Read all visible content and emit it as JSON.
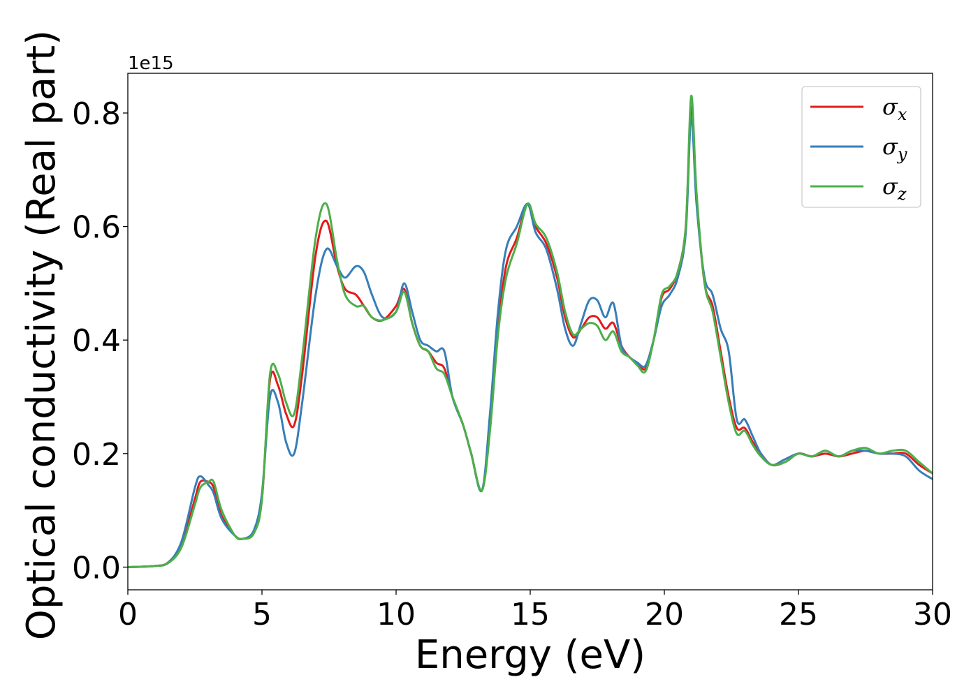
{
  "chart_data": {
    "type": "line",
    "xlabel": "Energy (eV)",
    "ylabel": "Optical conductivity (Real part)",
    "y_offset_text": "1e15",
    "xlim": [
      0,
      30
    ],
    "ylim": [
      -0.04,
      0.87
    ],
    "x_ticks": [
      0,
      5,
      10,
      15,
      20,
      25,
      30
    ],
    "x_tick_labels": [
      "0",
      "5",
      "10",
      "15",
      "20",
      "25",
      "30"
    ],
    "y_ticks": [
      0.0,
      0.2,
      0.4,
      0.6,
      0.8
    ],
    "y_tick_labels": [
      "0.0",
      "0.2",
      "0.4",
      "0.6",
      "0.8"
    ],
    "grid": false,
    "legend_position": "top-right",
    "series": [
      {
        "name": "σ",
        "subscript": "x",
        "color": "#e41a1c",
        "x": [
          0,
          1,
          1.5,
          2,
          2.5,
          2.7,
          3,
          3.2,
          3.5,
          4,
          4.3,
          4.7,
          5,
          5.3,
          5.6,
          5.9,
          6.2,
          6.5,
          7,
          7.4,
          7.8,
          8.1,
          8.5,
          8.8,
          9.1,
          9.5,
          10,
          10.3,
          10.6,
          10.9,
          11.2,
          11.5,
          11.8,
          12.1,
          12.5,
          12.8,
          13.2,
          13.5,
          13.8,
          14.1,
          14.5,
          14.9,
          15.2,
          15.6,
          16,
          16.3,
          16.6,
          16.9,
          17.2,
          17.5,
          17.8,
          18.1,
          18.4,
          18.7,
          19,
          19.3,
          19.6,
          19.9,
          20.2,
          20.5,
          20.8,
          21,
          21.2,
          21.5,
          21.8,
          22.1,
          22.4,
          22.7,
          23,
          23.3,
          23.6,
          24,
          24.5,
          25,
          25.5,
          26,
          26.5,
          27,
          27.5,
          28,
          28.5,
          29,
          29.5,
          30
        ],
        "y": [
          0,
          0.002,
          0.008,
          0.04,
          0.12,
          0.15,
          0.15,
          0.14,
          0.09,
          0.055,
          0.05,
          0.06,
          0.12,
          0.33,
          0.32,
          0.27,
          0.25,
          0.34,
          0.55,
          0.61,
          0.53,
          0.49,
          0.48,
          0.46,
          0.44,
          0.435,
          0.46,
          0.49,
          0.43,
          0.39,
          0.38,
          0.36,
          0.35,
          0.3,
          0.25,
          0.2,
          0.135,
          0.25,
          0.42,
          0.53,
          0.58,
          0.64,
          0.6,
          0.57,
          0.51,
          0.44,
          0.405,
          0.42,
          0.44,
          0.44,
          0.42,
          0.43,
          0.39,
          0.37,
          0.36,
          0.35,
          0.4,
          0.475,
          0.49,
          0.52,
          0.6,
          0.81,
          0.65,
          0.5,
          0.46,
          0.38,
          0.3,
          0.245,
          0.245,
          0.22,
          0.2,
          0.18,
          0.185,
          0.2,
          0.195,
          0.2,
          0.195,
          0.2,
          0.205,
          0.2,
          0.2,
          0.2,
          0.18,
          0.165
        ]
      },
      {
        "name": "σ",
        "subscript": "y",
        "color": "#377eb8",
        "x": [
          0,
          1,
          1.5,
          2,
          2.5,
          2.7,
          3,
          3.2,
          3.5,
          4,
          4.3,
          4.7,
          5,
          5.3,
          5.6,
          5.9,
          6.2,
          6.5,
          7,
          7.4,
          7.8,
          8.1,
          8.5,
          8.8,
          9.1,
          9.5,
          10,
          10.3,
          10.6,
          10.9,
          11.2,
          11.5,
          11.8,
          12.1,
          12.5,
          12.8,
          13.2,
          13.5,
          13.8,
          14.1,
          14.5,
          14.9,
          15.2,
          15.6,
          16,
          16.3,
          16.6,
          16.9,
          17.2,
          17.5,
          17.8,
          18.1,
          18.4,
          18.7,
          19,
          19.3,
          19.6,
          19.9,
          20.2,
          20.5,
          20.8,
          21,
          21.2,
          21.5,
          21.8,
          22.1,
          22.4,
          22.7,
          23,
          23.3,
          23.6,
          24,
          24.5,
          25,
          25.5,
          26,
          26.5,
          27,
          27.5,
          28,
          28.5,
          29,
          29.5,
          30
        ],
        "y": [
          0,
          0.002,
          0.008,
          0.045,
          0.14,
          0.16,
          0.145,
          0.13,
          0.085,
          0.055,
          0.05,
          0.065,
          0.13,
          0.3,
          0.29,
          0.22,
          0.2,
          0.29,
          0.48,
          0.56,
          0.53,
          0.51,
          0.53,
          0.52,
          0.48,
          0.44,
          0.45,
          0.5,
          0.45,
          0.4,
          0.39,
          0.38,
          0.38,
          0.3,
          0.25,
          0.2,
          0.135,
          0.27,
          0.45,
          0.56,
          0.6,
          0.64,
          0.59,
          0.56,
          0.49,
          0.42,
          0.39,
          0.43,
          0.47,
          0.47,
          0.44,
          0.465,
          0.39,
          0.37,
          0.36,
          0.355,
          0.4,
          0.46,
          0.48,
          0.51,
          0.59,
          0.795,
          0.64,
          0.51,
          0.48,
          0.42,
          0.38,
          0.26,
          0.26,
          0.23,
          0.2,
          0.18,
          0.19,
          0.2,
          0.195,
          0.205,
          0.195,
          0.205,
          0.205,
          0.2,
          0.2,
          0.195,
          0.17,
          0.155
        ]
      },
      {
        "name": "σ",
        "subscript": "z",
        "color": "#4daf4a",
        "x": [
          0,
          1,
          1.5,
          2,
          2.5,
          2.7,
          3,
          3.2,
          3.5,
          4,
          4.3,
          4.7,
          5,
          5.3,
          5.6,
          5.9,
          6.2,
          6.5,
          7,
          7.4,
          7.8,
          8.1,
          8.5,
          8.8,
          9.1,
          9.5,
          10,
          10.3,
          10.6,
          10.9,
          11.2,
          11.5,
          11.8,
          12.1,
          12.5,
          12.8,
          13.2,
          13.5,
          13.8,
          14.1,
          14.5,
          14.9,
          15.2,
          15.6,
          16,
          16.3,
          16.6,
          16.9,
          17.2,
          17.5,
          17.8,
          18.1,
          18.4,
          18.7,
          19,
          19.3,
          19.6,
          19.9,
          20.2,
          20.5,
          20.8,
          21,
          21.2,
          21.5,
          21.8,
          22.1,
          22.4,
          22.7,
          23,
          23.3,
          23.6,
          24,
          24.5,
          25,
          25.5,
          26,
          26.5,
          27,
          27.5,
          28,
          28.5,
          29,
          29.5,
          30
        ],
        "y": [
          0,
          0.002,
          0.007,
          0.035,
          0.11,
          0.14,
          0.15,
          0.15,
          0.1,
          0.055,
          0.05,
          0.06,
          0.12,
          0.34,
          0.34,
          0.29,
          0.27,
          0.37,
          0.58,
          0.64,
          0.54,
          0.48,
          0.46,
          0.46,
          0.44,
          0.435,
          0.45,
          0.485,
          0.43,
          0.39,
          0.38,
          0.35,
          0.34,
          0.3,
          0.25,
          0.2,
          0.135,
          0.24,
          0.41,
          0.51,
          0.57,
          0.64,
          0.605,
          0.58,
          0.52,
          0.45,
          0.41,
          0.42,
          0.43,
          0.425,
          0.4,
          0.415,
          0.38,
          0.37,
          0.355,
          0.345,
          0.4,
          0.48,
          0.495,
          0.52,
          0.6,
          0.83,
          0.66,
          0.5,
          0.45,
          0.37,
          0.29,
          0.235,
          0.24,
          0.215,
          0.195,
          0.18,
          0.185,
          0.2,
          0.195,
          0.205,
          0.195,
          0.205,
          0.21,
          0.2,
          0.205,
          0.205,
          0.185,
          0.165
        ]
      }
    ]
  }
}
